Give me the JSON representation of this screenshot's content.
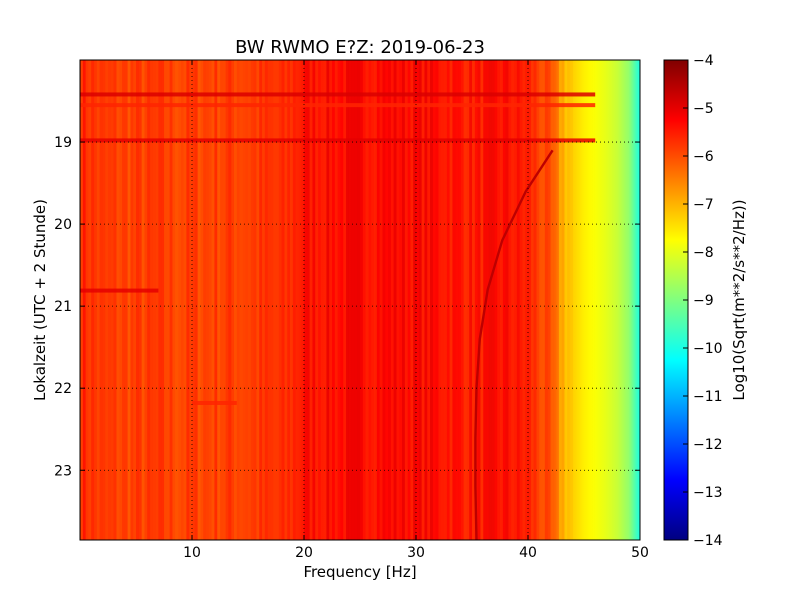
{
  "chart_data": {
    "type": "heatmap",
    "title": "BW RWMO E?Z: 2019-06-23",
    "xlabel": "Frequency [Hz]",
    "ylabel": "Lokalzeit (UTC + 2 Stunde)",
    "colorbar_label": "Log10(Sqrt(m**2/s**2/Hz))",
    "colormap": "jet",
    "xlim": [
      0,
      50
    ],
    "ylim": [
      18.0,
      23.85
    ],
    "y_inverted": true,
    "clim": [
      -14,
      -4
    ],
    "grid": true,
    "x_ticks": [
      10,
      20,
      30,
      40,
      50
    ],
    "x_tick_labels": [
      "10",
      "20",
      "30",
      "40",
      "50"
    ],
    "y_ticks": [
      19,
      20,
      21,
      22,
      23
    ],
    "y_tick_labels": [
      "19",
      "20",
      "21",
      "22",
      "23"
    ],
    "cbar_ticks": [
      -4,
      -5,
      -6,
      -7,
      -8,
      -9,
      -10,
      -11,
      -12,
      -13,
      -14
    ],
    "cbar_tick_labels": [
      "−4",
      "−5",
      "−6",
      "−7",
      "−8",
      "−9",
      "−10",
      "−11",
      "−12",
      "−13",
      "−14"
    ],
    "spectral_profile": {
      "frequency_hz": [
        0,
        2,
        10,
        18,
        20,
        25,
        30,
        35,
        38,
        40,
        42,
        43,
        44,
        45,
        46,
        47,
        48,
        49,
        50
      ],
      "log10_amplitude": [
        -5.6,
        -5.9,
        -5.9,
        -5.8,
        -5.4,
        -5.3,
        -5.3,
        -5.5,
        -5.4,
        -5.6,
        -6.2,
        -6.9,
        -7.3,
        -7.6,
        -7.8,
        -8.0,
        -8.3,
        -8.8,
        -10.0
      ]
    },
    "horizontal_bands": [
      {
        "time": 18.42,
        "level": -4.9
      },
      {
        "time": 18.55,
        "level": -5.6
      },
      {
        "time": 18.98,
        "level": -5.0
      },
      {
        "time": 20.81,
        "level": -5.0,
        "f_end": 7
      },
      {
        "time": 22.18,
        "level": -5.6,
        "f_start": 10,
        "f_end": 14
      }
    ],
    "drift_line": {
      "time": [
        19.1,
        19.6,
        20.2,
        20.8,
        21.4,
        22.0,
        22.6,
        23.2,
        23.85
      ],
      "frequency_hz": [
        42.2,
        39.8,
        37.7,
        36.4,
        35.7,
        35.4,
        35.3,
        35.3,
        35.4
      ],
      "level": -4.6
    }
  }
}
